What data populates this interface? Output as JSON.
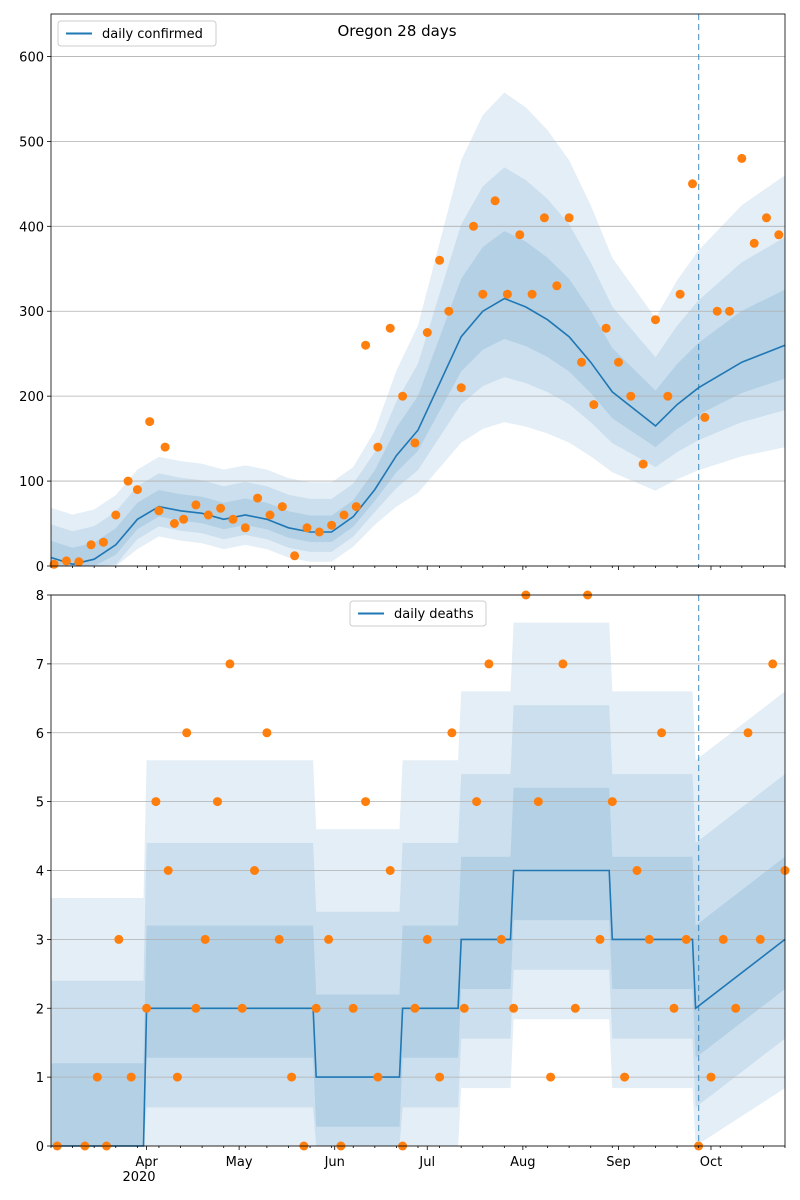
{
  "chart_data": [
    {
      "type": "line",
      "title": "Oregon 28 days",
      "legend": {
        "label": "daily confirmed",
        "placement": "top-left"
      },
      "ylim": [
        0,
        650
      ],
      "yticks": [
        0,
        100,
        200,
        300,
        400,
        500,
        600
      ],
      "grid": "horizontal",
      "xlim": [
        "2020-03-01",
        "2020-10-25"
      ],
      "forecast_start": "2020-09-27",
      "colors": {
        "line": "#1f77b4",
        "points": "#ff7f0e",
        "band": "#1f77b4",
        "forecast_line": "#1f77b4"
      },
      "series": [
        {
          "role": "fit",
          "x": [
            "2020-03-01",
            "2020-03-08",
            "2020-03-15",
            "2020-03-22",
            "2020-03-29",
            "2020-04-05",
            "2020-04-12",
            "2020-04-19",
            "2020-04-26",
            "2020-05-03",
            "2020-05-10",
            "2020-05-17",
            "2020-05-24",
            "2020-05-31",
            "2020-06-07",
            "2020-06-14",
            "2020-06-21",
            "2020-06-28",
            "2020-07-05",
            "2020-07-12",
            "2020-07-19",
            "2020-07-26",
            "2020-08-02",
            "2020-08-09",
            "2020-08-16",
            "2020-08-23",
            "2020-08-30",
            "2020-09-06",
            "2020-09-13",
            "2020-09-20",
            "2020-09-27",
            "2020-10-04",
            "2020-10-11",
            "2020-10-18",
            "2020-10-25"
          ],
          "values": [
            10,
            2,
            8,
            25,
            55,
            70,
            65,
            62,
            55,
            60,
            55,
            45,
            40,
            40,
            58,
            90,
            130,
            160,
            215,
            270,
            300,
            315,
            305,
            290,
            270,
            240,
            205,
            185,
            165,
            190,
            210,
            225,
            240,
            250,
            260
          ]
        },
        {
          "role": "observed",
          "x": [
            "2020-03-02",
            "2020-03-06",
            "2020-03-10",
            "2020-03-14",
            "2020-03-18",
            "2020-03-22",
            "2020-03-26",
            "2020-03-29",
            "2020-04-02",
            "2020-04-05",
            "2020-04-07",
            "2020-04-10",
            "2020-04-13",
            "2020-04-17",
            "2020-04-21",
            "2020-04-25",
            "2020-04-29",
            "2020-05-03",
            "2020-05-07",
            "2020-05-11",
            "2020-05-15",
            "2020-05-19",
            "2020-05-23",
            "2020-05-27",
            "2020-05-31",
            "2020-06-04",
            "2020-06-08",
            "2020-06-11",
            "2020-06-15",
            "2020-06-19",
            "2020-06-23",
            "2020-06-27",
            "2020-07-01",
            "2020-07-05",
            "2020-07-08",
            "2020-07-12",
            "2020-07-16",
            "2020-07-19",
            "2020-07-23",
            "2020-07-27",
            "2020-07-31",
            "2020-08-04",
            "2020-08-08",
            "2020-08-12",
            "2020-08-16",
            "2020-08-20",
            "2020-08-24",
            "2020-08-28",
            "2020-09-01",
            "2020-09-05",
            "2020-09-09",
            "2020-09-13",
            "2020-09-17",
            "2020-09-21",
            "2020-09-25",
            "2020-09-29",
            "2020-10-03",
            "2020-10-07",
            "2020-10-11",
            "2020-10-15",
            "2020-10-19",
            "2020-10-23"
          ],
          "values": [
            2,
            6,
            5,
            25,
            28,
            60,
            100,
            90,
            170,
            65,
            140,
            50,
            55,
            72,
            60,
            68,
            55,
            45,
            80,
            60,
            70,
            12,
            45,
            40,
            48,
            60,
            70,
            260,
            140,
            280,
            200,
            145,
            275,
            360,
            300,
            210,
            400,
            320,
            430,
            320,
            390,
            320,
            410,
            330,
            410,
            240,
            190,
            280,
            240,
            200,
            120,
            290,
            200,
            320,
            450,
            175,
            300,
            300,
            480,
            380,
            410,
            390
          ]
        }
      ]
    },
    {
      "type": "line",
      "legend": {
        "label": "daily deaths",
        "placement": "top-center"
      },
      "ylim": [
        0,
        8
      ],
      "yticks": [
        0,
        1,
        2,
        3,
        4,
        5,
        6,
        7,
        8
      ],
      "grid": "horizontal",
      "xtick_labels": [
        "Apr",
        "May",
        "Jun",
        "Jul",
        "Aug",
        "Sep",
        "Oct"
      ],
      "xtick_year": "2020",
      "xlim": [
        "2020-03-01",
        "2020-10-25"
      ],
      "forecast_start": "2020-09-27",
      "colors": {
        "line": "#1f77b4",
        "points": "#ff7f0e",
        "band": "#1f77b4",
        "forecast_line": "#1f77b4"
      },
      "series": [
        {
          "role": "fit",
          "x": [
            "2020-03-01",
            "2020-03-20",
            "2020-03-21",
            "2020-03-31",
            "2020-04-01",
            "2020-05-25",
            "2020-05-26",
            "2020-06-22",
            "2020-06-23",
            "2020-07-11",
            "2020-07-12",
            "2020-07-28",
            "2020-07-29",
            "2020-08-29",
            "2020-08-30",
            "2020-09-25",
            "2020-09-26",
            "2020-10-25"
          ],
          "values": [
            0,
            0,
            0,
            0,
            2,
            2,
            1,
            1,
            2,
            2,
            3,
            3,
            4,
            4,
            3,
            3,
            2,
            3
          ]
        },
        {
          "role": "observed",
          "x": [
            "2020-03-03",
            "2020-03-12",
            "2020-03-16",
            "2020-03-19",
            "2020-03-23",
            "2020-03-27",
            "2020-04-01",
            "2020-04-04",
            "2020-04-08",
            "2020-04-11",
            "2020-04-14",
            "2020-04-17",
            "2020-04-20",
            "2020-04-24",
            "2020-04-28",
            "2020-05-02",
            "2020-05-06",
            "2020-05-10",
            "2020-05-14",
            "2020-05-18",
            "2020-05-22",
            "2020-05-26",
            "2020-05-30",
            "2020-06-03",
            "2020-06-07",
            "2020-06-11",
            "2020-06-15",
            "2020-06-19",
            "2020-06-23",
            "2020-06-27",
            "2020-07-01",
            "2020-07-05",
            "2020-07-09",
            "2020-07-13",
            "2020-07-17",
            "2020-07-21",
            "2020-07-25",
            "2020-07-29",
            "2020-08-02",
            "2020-08-06",
            "2020-08-10",
            "2020-08-14",
            "2020-08-18",
            "2020-08-22",
            "2020-08-26",
            "2020-08-30",
            "2020-09-03",
            "2020-09-07",
            "2020-09-11",
            "2020-09-15",
            "2020-09-19",
            "2020-09-23",
            "2020-09-27",
            "2020-10-01",
            "2020-10-05",
            "2020-10-09",
            "2020-10-13",
            "2020-10-17",
            "2020-10-21",
            "2020-10-25"
          ],
          "values": [
            0,
            0,
            1,
            0,
            3,
            1,
            2,
            5,
            4,
            1,
            6,
            2,
            3,
            5,
            7,
            2,
            4,
            6,
            3,
            1,
            0,
            2,
            3,
            0,
            2,
            5,
            1,
            4,
            0,
            2,
            3,
            1,
            6,
            2,
            5,
            7,
            3,
            2,
            8,
            5,
            1,
            7,
            2,
            8,
            3,
            5,
            1,
            4,
            3,
            6,
            2,
            3,
            0,
            1,
            3,
            2,
            6,
            3,
            7,
            4
          ]
        }
      ]
    }
  ]
}
